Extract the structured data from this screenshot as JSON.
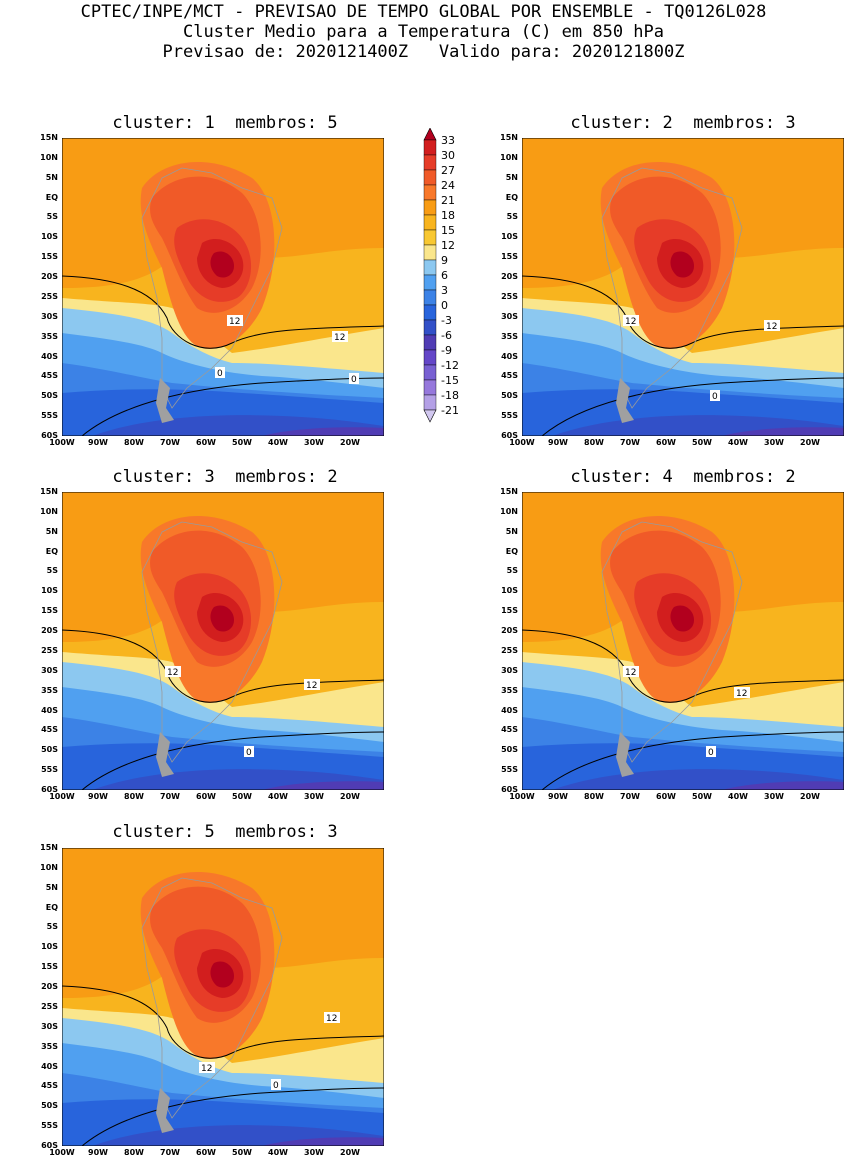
{
  "header": {
    "line1": "CPTEC/INPE/MCT - PREVISAO DE TEMPO GLOBAL POR ENSEMBLE - TQ0126L028",
    "line2": "Cluster Medio para a Temperatura (C) em 850 hPa",
    "line3": "Previsao de: 2020121400Z   Valido para: 2020121800Z"
  },
  "panels": [
    {
      "title": "cluster: 1  membros: 5",
      "contour_labels": [
        "12",
        "12",
        "0",
        "0"
      ]
    },
    {
      "title": "cluster: 2  membros: 3",
      "contour_labels": [
        "12",
        "12",
        "0"
      ]
    },
    {
      "title": "cluster: 3  membros: 2",
      "contour_labels": [
        "12",
        "12",
        "0"
      ]
    },
    {
      "title": "cluster: 4  membros: 2",
      "contour_labels": [
        "12",
        "12",
        "0"
      ]
    },
    {
      "title": "cluster: 5  membros: 3",
      "contour_labels": [
        "12",
        "12",
        "0"
      ]
    }
  ],
  "lat_ticks": [
    "15N",
    "10N",
    "5N",
    "EQ",
    "5S",
    "10S",
    "15S",
    "20S",
    "25S",
    "30S",
    "35S",
    "40S",
    "45S",
    "50S",
    "55S",
    "60S"
  ],
  "lon_ticks": [
    "100W",
    "90W",
    "80W",
    "70W",
    "60W",
    "50W",
    "40W",
    "30W",
    "20W"
  ],
  "colorbar": {
    "levels": [
      "33",
      "30",
      "27",
      "24",
      "21",
      "18",
      "15",
      "12",
      "9",
      "6",
      "3",
      "0",
      "-3",
      "-6",
      "-9",
      "-12",
      "-15",
      "-18",
      "-21"
    ],
    "colors": [
      "#b2001e",
      "#d21e1e",
      "#e63c28",
      "#f05a28",
      "#f8782a",
      "#f89c14",
      "#f8b41e",
      "#f8c832",
      "#fae68c",
      "#8cc8f0",
      "#50a0f0",
      "#3c82e6",
      "#2864dc",
      "#3250c8",
      "#503cb4",
      "#6446c8",
      "#7860d2",
      "#9678dc",
      "#b4a0e6",
      "#d2c8f0"
    ]
  },
  "chart_data": {
    "type": "heatmap",
    "title": "Cluster Medio para a Temperatura (C) em 850 hPa",
    "xlabel": "",
    "ylabel": "",
    "xlim": [
      "100W",
      "15W"
    ],
    "ylim": [
      "60S",
      "15N"
    ],
    "contour_lines": [
      12,
      0
    ],
    "clusters": [
      1,
      2,
      3,
      4,
      5
    ],
    "members": [
      5,
      3,
      2,
      2,
      3
    ]
  }
}
